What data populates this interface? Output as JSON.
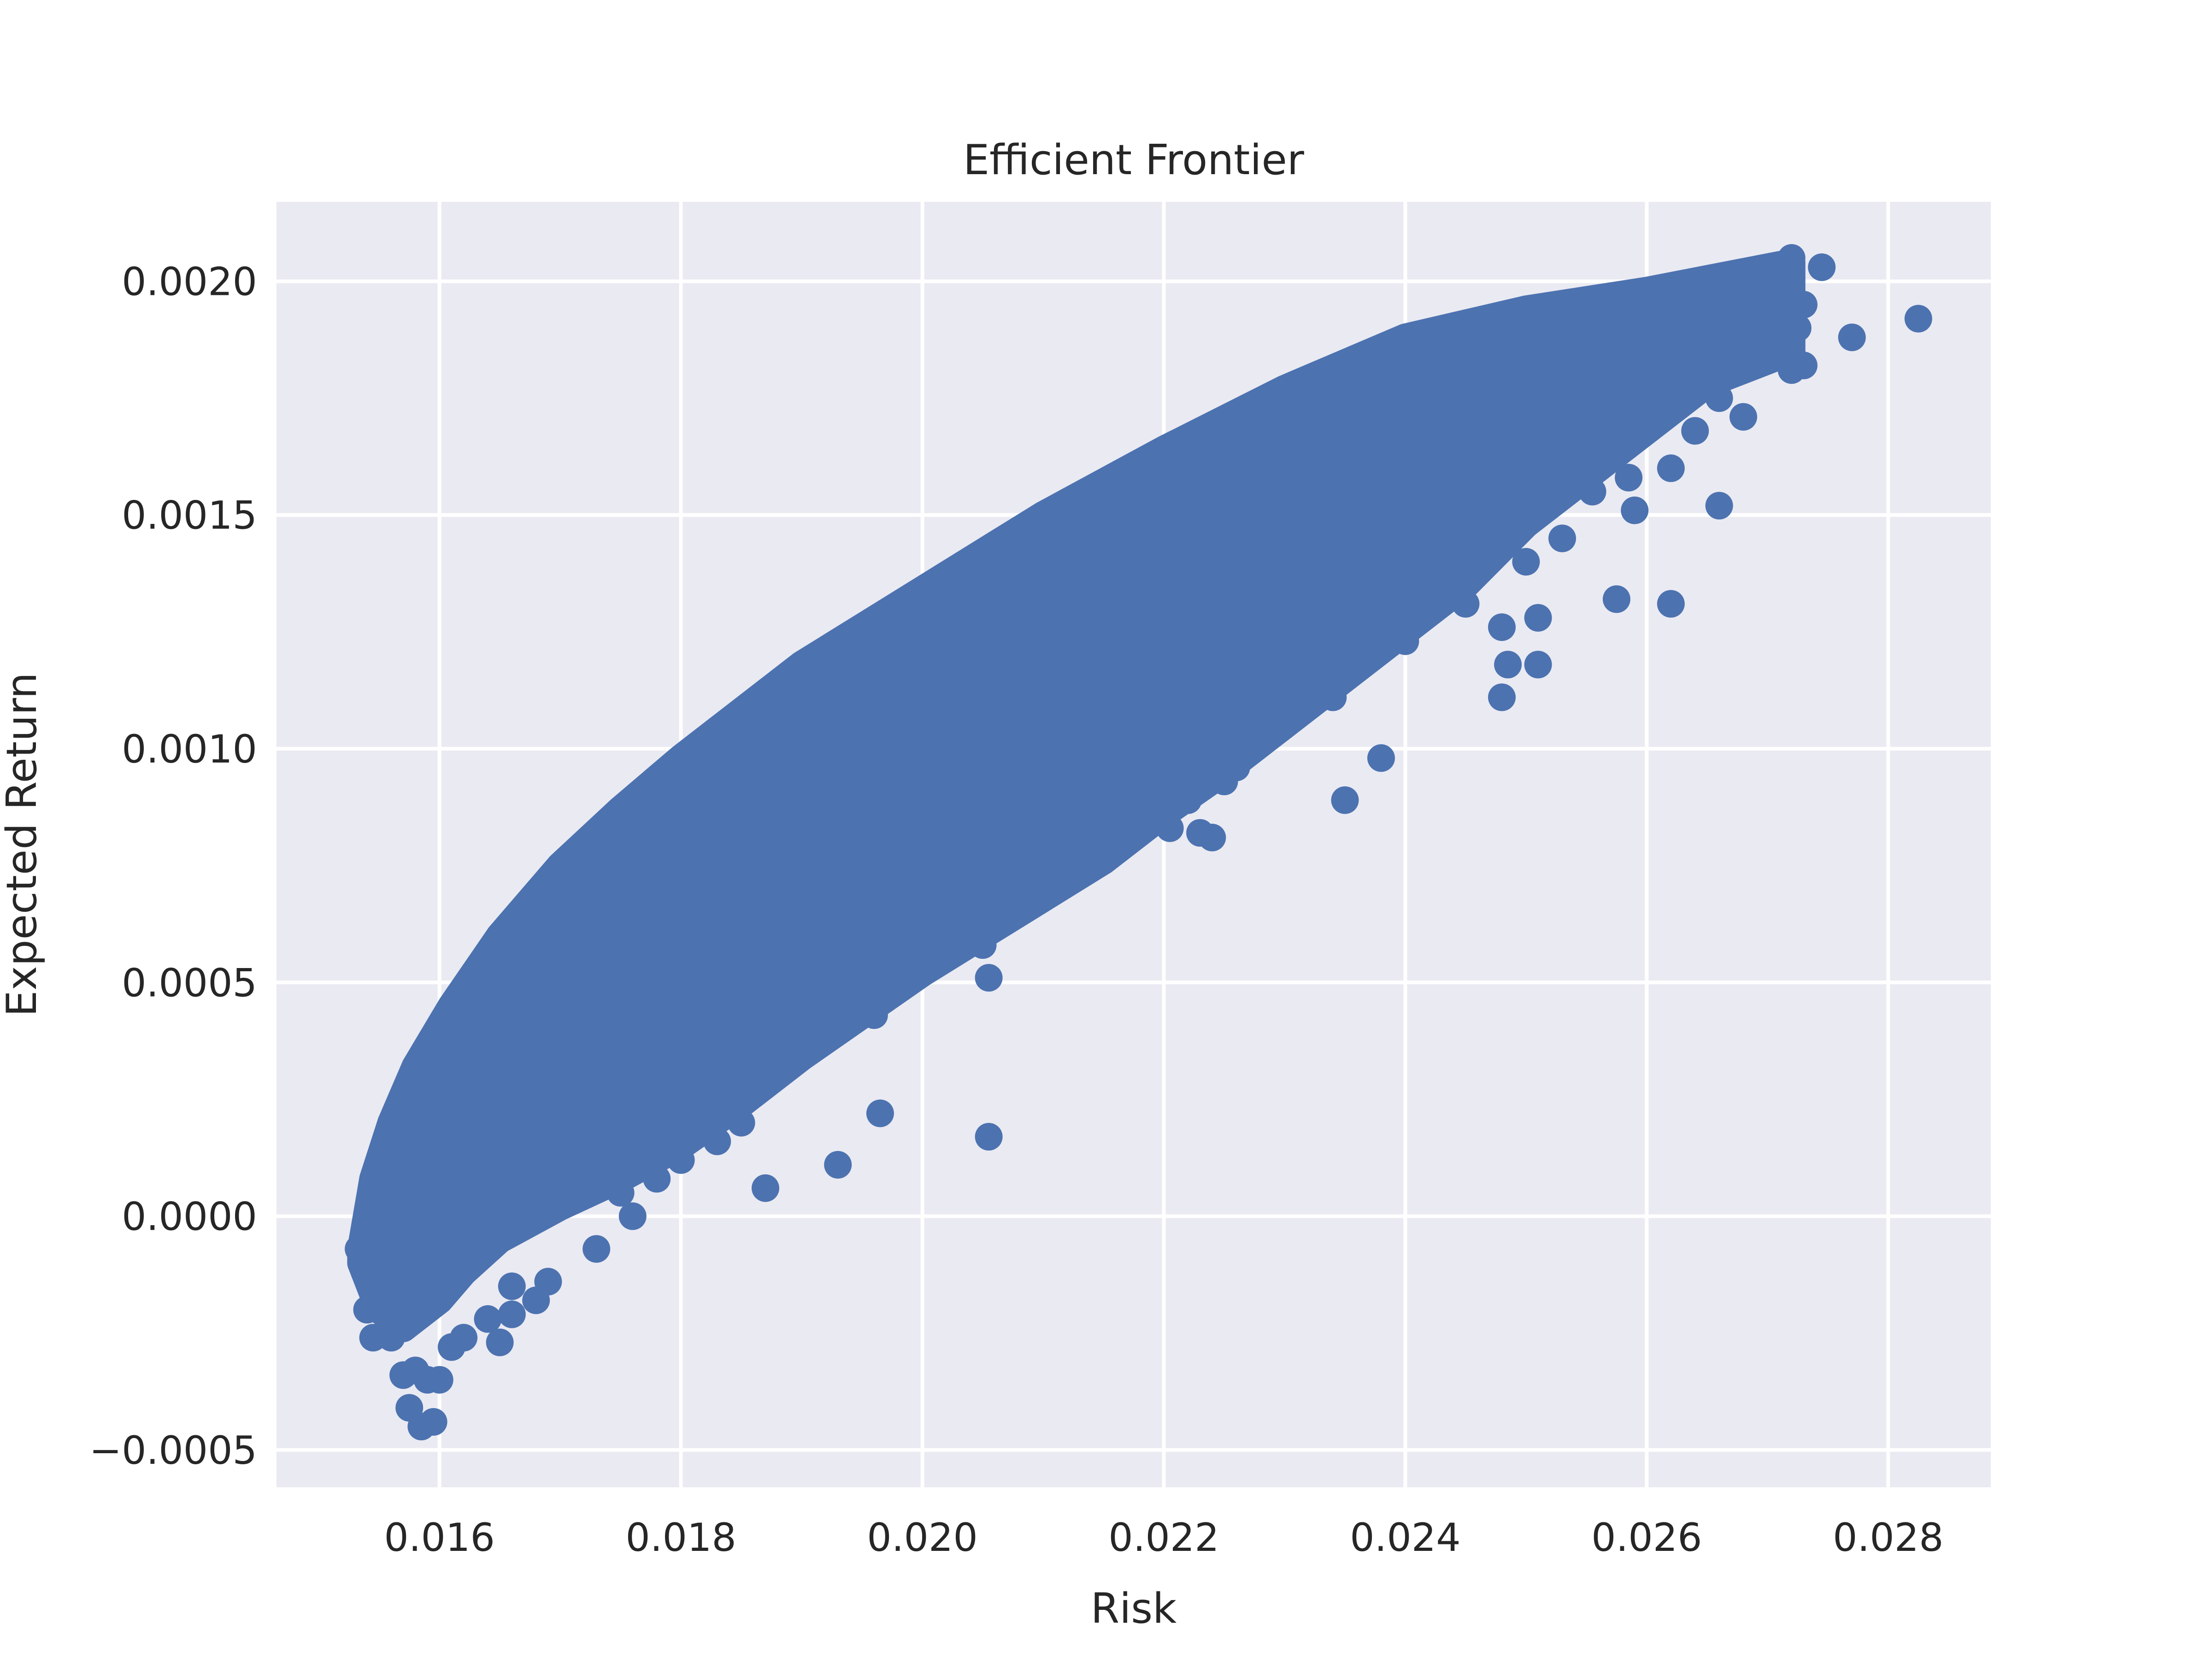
{
  "chart_data": {
    "type": "scatter",
    "title": "Efficient Frontier",
    "xlabel": "Risk",
    "ylabel": "Expected Return",
    "xlim": [
      0.01465,
      0.02885
    ],
    "ylim": [
      -0.00058,
      0.00217
    ],
    "x_ticks": [
      0.016,
      0.018,
      0.02,
      0.022,
      0.024,
      0.026,
      0.028
    ],
    "x_tick_labels": [
      "0.016",
      "0.018",
      "0.020",
      "0.022",
      "0.024",
      "0.026",
      "0.028"
    ],
    "y_ticks": [
      -0.0005,
      0.0,
      0.0005,
      0.001,
      0.0015,
      0.002
    ],
    "y_tick_labels": [
      "−0.0005",
      "0.0000",
      "0.0005",
      "0.0010",
      "0.0015",
      "0.0020"
    ],
    "grid": true,
    "background_color": "#eaeaf2",
    "grid_color": "#ffffff",
    "series": [
      {
        "color": "#4c72b0",
        "frontier_upper": [
          [
            0.01535,
            -7e-05
          ],
          [
            0.01545,
            8e-05
          ],
          [
            0.0156,
            0.0002
          ],
          [
            0.0158,
            0.00032
          ],
          [
            0.0161,
            0.00045
          ],
          [
            0.0165,
            0.0006
          ],
          [
            0.017,
            0.00075
          ],
          [
            0.0175,
            0.00087
          ],
          [
            0.018,
            0.00098
          ],
          [
            0.019,
            0.00118
          ],
          [
            0.02,
            0.00134
          ],
          [
            0.021,
            0.0015
          ],
          [
            0.022,
            0.00164
          ],
          [
            0.023,
            0.00177
          ],
          [
            0.024,
            0.00188
          ],
          [
            0.025,
            0.00194
          ],
          [
            0.026,
            0.00198
          ],
          [
            0.0268,
            0.00202
          ],
          [
            0.0272,
            0.00204
          ]
        ],
        "frontier_lower": [
          [
            0.0272,
            0.00185
          ],
          [
            0.0265,
            0.00178
          ],
          [
            0.026,
            0.00168
          ],
          [
            0.0255,
            0.00158
          ],
          [
            0.025,
            0.00148
          ],
          [
            0.0245,
            0.00135
          ],
          [
            0.024,
            0.00125
          ],
          [
            0.0235,
            0.00115
          ],
          [
            0.023,
            0.00105
          ],
          [
            0.0225,
            0.00095
          ],
          [
            0.022,
            0.00086
          ],
          [
            0.0215,
            0.00076
          ],
          [
            0.021,
            0.00068
          ],
          [
            0.0205,
            0.0006
          ],
          [
            0.02,
            0.00052
          ],
          [
            0.0195,
            0.00043
          ],
          [
            0.019,
            0.00034
          ],
          [
            0.0185,
            0.00024
          ],
          [
            0.018,
            0.00015
          ],
          [
            0.0175,
            8e-05
          ],
          [
            0.017,
            2e-05
          ],
          [
            0.0165,
            -5e-05
          ],
          [
            0.0162,
            -0.00012
          ],
          [
            0.016,
            -0.00018
          ],
          [
            0.0157,
            -0.00024
          ],
          [
            0.0155,
            -0.0002
          ],
          [
            0.01535,
            -0.0001
          ]
        ],
        "points": [
          [
            0.01533,
            -7e-05
          ],
          [
            0.01538,
            -0.00012
          ],
          [
            0.0154,
            -0.0002
          ],
          [
            0.01545,
            -0.00026
          ],
          [
            0.0156,
            -0.00026
          ],
          [
            0.0157,
            -0.00034
          ],
          [
            0.0158,
            -0.00033
          ],
          [
            0.0159,
            -0.00035
          ],
          [
            0.01575,
            -0.00041
          ],
          [
            0.01585,
            -0.00045
          ],
          [
            0.01595,
            -0.00044
          ],
          [
            0.016,
            -0.00035
          ],
          [
            0.0161,
            -0.00028
          ],
          [
            0.0162,
            -0.00026
          ],
          [
            0.0164,
            -0.00022
          ],
          [
            0.0165,
            -0.00027
          ],
          [
            0.0166,
            -0.00021
          ],
          [
            0.0168,
            -0.00018
          ],
          [
            0.0169,
            -0.00014
          ],
          [
            0.0166,
            -0.00015
          ],
          [
            0.0173,
            -7e-05
          ],
          [
            0.0176,
            0.0
          ],
          [
            0.0175,
            5e-05
          ],
          [
            0.0178,
            8e-05
          ],
          [
            0.018,
            0.00012
          ],
          [
            0.0183,
            0.00016
          ],
          [
            0.0185,
            0.0002
          ],
          [
            0.0187,
            6e-05
          ],
          [
            0.0193,
            0.00011
          ],
          [
            0.01965,
            0.00022
          ],
          [
            0.02055,
            0.00017
          ],
          [
            0.02055,
            0.00051
          ],
          [
            0.0205,
            0.00058
          ],
          [
            0.0196,
            0.00043
          ],
          [
            0.01955,
            0.00047
          ],
          [
            0.0192,
            0.00039
          ],
          [
            0.0188,
            0.00033
          ],
          [
            0.0203,
            0.00068
          ],
          [
            0.021,
            0.00069
          ],
          [
            0.0215,
            0.00078
          ],
          [
            0.0218,
            0.00082
          ],
          [
            0.02205,
            0.00083
          ],
          [
            0.0223,
            0.00082
          ],
          [
            0.0224,
            0.00081
          ],
          [
            0.0222,
            0.00089
          ],
          [
            0.0225,
            0.00093
          ],
          [
            0.0226,
            0.00096
          ],
          [
            0.0228,
            0.00104
          ],
          [
            0.0234,
            0.00111
          ],
          [
            0.0235,
            0.00089
          ],
          [
            0.0238,
            0.00098
          ],
          [
            0.0233,
            0.00114
          ],
          [
            0.0236,
            0.00121
          ],
          [
            0.02385,
            0.00127
          ],
          [
            0.024,
            0.00123
          ],
          [
            0.0242,
            0.00134
          ],
          [
            0.0245,
            0.00131
          ],
          [
            0.0248,
            0.00126
          ],
          [
            0.02485,
            0.00118
          ],
          [
            0.0248,
            0.00111
          ],
          [
            0.0251,
            0.00118
          ],
          [
            0.0251,
            0.00128
          ],
          [
            0.025,
            0.0014
          ],
          [
            0.0253,
            0.00145
          ],
          [
            0.02555,
            0.00155
          ],
          [
            0.02575,
            0.00132
          ],
          [
            0.0259,
            0.00151
          ],
          [
            0.02585,
            0.00158
          ],
          [
            0.0262,
            0.0016
          ],
          [
            0.0262,
            0.00131
          ],
          [
            0.0266,
            0.00152
          ],
          [
            0.0264,
            0.00168
          ],
          [
            0.0266,
            0.00175
          ],
          [
            0.0268,
            0.00171
          ],
          [
            0.0267,
            0.00183
          ],
          [
            0.0266,
            0.00188
          ],
          [
            0.027,
            0.00194
          ],
          [
            0.0271,
            0.00189
          ],
          [
            0.0272,
            0.00181
          ],
          [
            0.0273,
            0.00182
          ],
          [
            0.02725,
            0.0019
          ],
          [
            0.0273,
            0.00195
          ],
          [
            0.02745,
            0.00203
          ],
          [
            0.0272,
            0.00205
          ],
          [
            0.0277,
            0.00188
          ],
          [
            0.02825,
            0.00192
          ],
          [
            0.026,
            0.00178
          ],
          [
            0.0256,
            0.00175
          ],
          [
            0.025,
            0.00165
          ],
          [
            0.0245,
            0.00148
          ],
          [
            0.0242,
            0.00145
          ]
        ]
      }
    ]
  }
}
